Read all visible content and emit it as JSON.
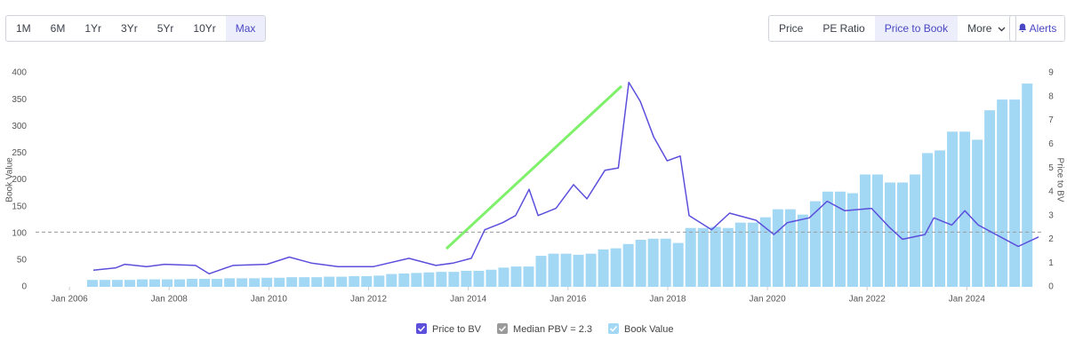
{
  "controls": {
    "ranges": [
      "1M",
      "6M",
      "1Yr",
      "3Yr",
      "5Yr",
      "10Yr",
      "Max"
    ],
    "selected_range": "Max",
    "views": [
      "Price",
      "PE Ratio",
      "Price to Book",
      "More"
    ],
    "selected_view": "Price to Book",
    "alerts": "Alerts"
  },
  "chart_data": {
    "type": "combo",
    "ylabel": "Book Value",
    "y2label": "Price to BV",
    "xlim": [
      2005.32,
      2025.51
    ],
    "xticks": [
      {
        "value": 2006,
        "label": "Jan 2006"
      },
      {
        "value": 2008,
        "label": "Jan 2008"
      },
      {
        "value": 2010,
        "label": "Jan 2010"
      },
      {
        "value": 2012,
        "label": "Jan 2012"
      },
      {
        "value": 2014,
        "label": "Jan 2014"
      },
      {
        "value": 2016,
        "label": "Jan 2016"
      },
      {
        "value": 2018,
        "label": "Jan 2018"
      },
      {
        "value": 2020,
        "label": "Jan 2020"
      },
      {
        "value": 2022,
        "label": "Jan 2022"
      },
      {
        "value": 2024,
        "label": "Jan 2024"
      }
    ],
    "ylim": [
      0,
      400
    ],
    "yticks": [
      0,
      50,
      100,
      150,
      200,
      250,
      300,
      350,
      400
    ],
    "y2lim": [
      0,
      9
    ],
    "y2ticks": [
      0,
      1,
      2,
      3,
      4,
      5,
      6,
      7,
      8,
      9
    ],
    "series": [
      {
        "name": "Price to BV",
        "type": "line",
        "axis": "y2",
        "color": "#5b4fdc",
        "x": [
          2006.48,
          2006.93,
          2007.11,
          2007.55,
          2007.91,
          2008.53,
          2008.8,
          2009.28,
          2009.96,
          2010.41,
          2010.85,
          2011.39,
          2012.1,
          2012.81,
          2013.35,
          2013.7,
          2014.06,
          2014.33,
          2014.69,
          2014.95,
          2015.22,
          2015.4,
          2015.76,
          2016.11,
          2016.38,
          2016.74,
          2017.01,
          2017.22,
          2017.45,
          2017.72,
          2017.99,
          2018.25,
          2018.43,
          2018.88,
          2019.24,
          2019.77,
          2020.13,
          2020.4,
          2020.84,
          2021.2,
          2021.55,
          2022.09,
          2022.45,
          2022.71,
          2023.16,
          2023.34,
          2023.7,
          2023.96,
          2024.23,
          2025.03,
          2025.44
        ],
        "values": [
          0.7,
          0.8,
          0.95,
          0.85,
          0.95,
          0.9,
          0.55,
          0.9,
          0.95,
          1.25,
          1.0,
          0.85,
          0.85,
          1.2,
          0.9,
          1.0,
          1.2,
          2.4,
          2.7,
          3.0,
          4.1,
          3.0,
          3.3,
          4.3,
          3.7,
          4.9,
          5.0,
          8.6,
          7.8,
          6.3,
          5.3,
          5.5,
          3.0,
          2.4,
          3.1,
          2.8,
          2.2,
          2.7,
          2.9,
          3.6,
          3.2,
          3.3,
          2.5,
          2.0,
          2.2,
          2.9,
          2.6,
          3.2,
          2.6,
          1.7,
          2.1
        ]
      },
      {
        "name": "Median PBV = 2.3",
        "type": "hline",
        "axis": "y2",
        "color": "#9a9a9a",
        "value": 2.3
      },
      {
        "name": "Book Value",
        "type": "bar",
        "color": "#a3d8f5",
        "x": [
          2006.46,
          2006.71,
          2006.96,
          2007.21,
          2007.46,
          2007.71,
          2007.96,
          2008.21,
          2008.46,
          2008.71,
          2008.96,
          2009.21,
          2009.46,
          2009.71,
          2009.96,
          2010.21,
          2010.46,
          2010.71,
          2010.96,
          2011.21,
          2011.46,
          2011.71,
          2011.96,
          2012.21,
          2012.46,
          2012.71,
          2012.96,
          2013.21,
          2013.46,
          2013.71,
          2013.96,
          2014.21,
          2014.46,
          2014.71,
          2014.96,
          2015.21,
          2015.46,
          2015.71,
          2015.96,
          2016.21,
          2016.46,
          2016.71,
          2016.96,
          2017.21,
          2017.46,
          2017.71,
          2017.96,
          2018.21,
          2018.46,
          2018.71,
          2018.96,
          2019.21,
          2019.46,
          2019.71,
          2019.96,
          2020.21,
          2020.46,
          2020.71,
          2020.96,
          2021.21,
          2021.46,
          2021.71,
          2021.96,
          2022.21,
          2022.46,
          2022.71,
          2022.96,
          2023.21,
          2023.46,
          2023.71,
          2023.96,
          2024.21,
          2024.46,
          2024.71,
          2024.96,
          2025.21
        ],
        "values": [
          13,
          13,
          13,
          13,
          14,
          14,
          14,
          14,
          15,
          15,
          15,
          16,
          16,
          16,
          17,
          17,
          18,
          18,
          18,
          19,
          19,
          20,
          20,
          21,
          24,
          25,
          26,
          27,
          28,
          28,
          30,
          30,
          32,
          36,
          38,
          38,
          58,
          62,
          62,
          60,
          62,
          70,
          72,
          80,
          88,
          90,
          90,
          82,
          110,
          110,
          112,
          110,
          120,
          120,
          130,
          145,
          145,
          135,
          160,
          178,
          178,
          175,
          210,
          210,
          195,
          195,
          210,
          250,
          255,
          290,
          290,
          275,
          330,
          350,
          350,
          380
        ]
      }
    ]
  }
}
